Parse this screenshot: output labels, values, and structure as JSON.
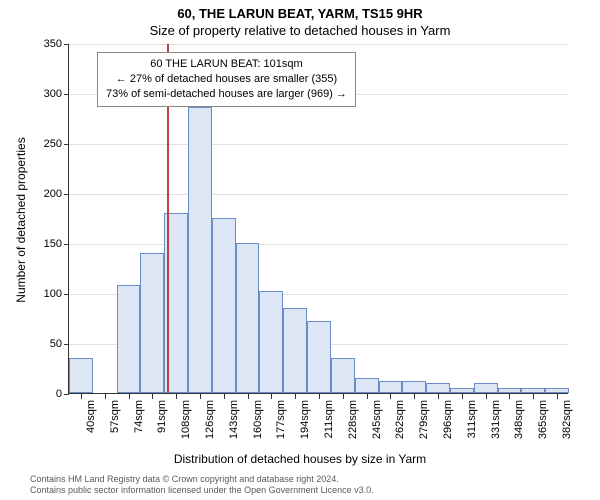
{
  "title_main": "60, THE LARUN BEAT, YARM, TS15 9HR",
  "title_sub": "Size of property relative to detached houses in Yarm",
  "ylabel": "Number of detached properties",
  "xlabel": "Distribution of detached houses by size in Yarm",
  "chart": {
    "type": "histogram",
    "ylim": [
      0,
      350
    ],
    "ytick_step": 50,
    "yticks": [
      0,
      50,
      100,
      150,
      200,
      250,
      300,
      350
    ],
    "x_categories": [
      "40sqm",
      "57sqm",
      "74sqm",
      "91sqm",
      "108sqm",
      "126sqm",
      "143sqm",
      "160sqm",
      "177sqm",
      "194sqm",
      "211sqm",
      "228sqm",
      "245sqm",
      "262sqm",
      "279sqm",
      "296sqm",
      "311sqm",
      "331sqm",
      "348sqm",
      "365sqm",
      "382sqm"
    ],
    "bar_values": [
      35,
      0,
      108,
      140,
      180,
      286,
      175,
      150,
      102,
      85,
      72,
      35,
      15,
      12,
      12,
      10,
      5,
      10,
      5,
      5,
      5
    ],
    "bar_fill": "#dce6f5",
    "bar_border": "#6a8cc7",
    "grid_color": "#e0e0e0",
    "background_color": "#ffffff",
    "axis_color": "#333333",
    "title_fontsize": 13,
    "label_fontsize": 12,
    "tick_fontsize": 11,
    "bar_width_ratio": 1.0,
    "marker_line_x_index": 3.6,
    "marker_line_color": "#c04040",
    "marker_line_width": 2
  },
  "annotation": {
    "line1": "60 THE LARUN BEAT: 101sqm",
    "line2": "← 27% of detached houses are smaller (355)",
    "line3": "73% of semi-detached houses are larger (969) →",
    "border_color": "#888888",
    "background": "#ffffff",
    "fontsize": 11
  },
  "footer": {
    "line1": "Contains HM Land Registry data © Crown copyright and database right 2024.",
    "line2": "Contains public sector information licensed under the Open Government Licence v3.0."
  }
}
